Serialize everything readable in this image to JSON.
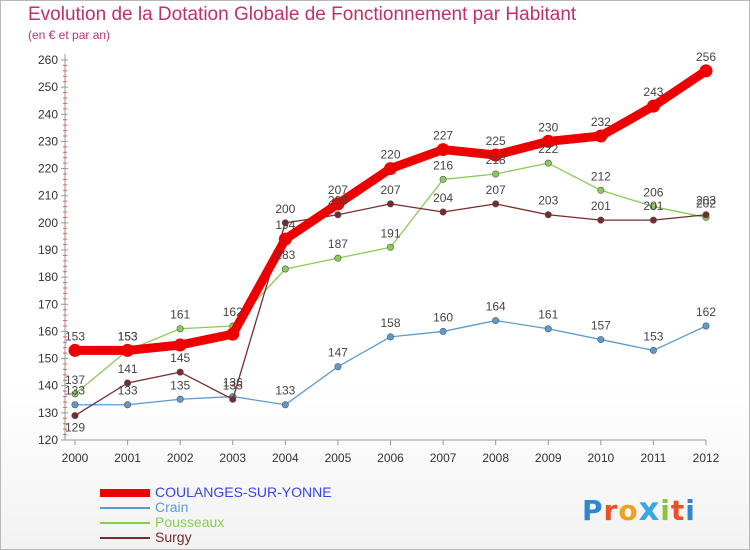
{
  "page": {
    "title": "Evolution de la Dotation Globale de Fonctionnement par Habitant",
    "subtitle": "(en € et par an)"
  },
  "logo": {
    "text": "Proxiti",
    "letters": [
      "P",
      "r",
      "o",
      "x",
      "i",
      "t",
      "i"
    ],
    "colors": [
      "#2f86d0",
      "#e8512a",
      "#f0a020",
      "#3aa8e0",
      "#8cc43a",
      "#e8512a",
      "#2f86d0"
    ]
  },
  "chart_data": {
    "type": "line",
    "title": "Evolution de la Dotation Globale de Fonctionnement par Habitant",
    "ylabel": "(en € et par an)",
    "xlabel": "",
    "x": [
      "2000",
      "2001",
      "2002",
      "2003",
      "2004",
      "2005",
      "2006",
      "2007",
      "2008",
      "2009",
      "2010",
      "2011",
      "2012"
    ],
    "ylim": [
      120,
      260
    ],
    "yticks": [
      120,
      130,
      140,
      150,
      160,
      170,
      180,
      190,
      200,
      210,
      220,
      230,
      240,
      250,
      260
    ],
    "grid": false,
    "legend_position": "bottom-left",
    "series": [
      {
        "name": "COULANGES-SUR-YONNE",
        "color": "#ee0000",
        "textcolor": "#3344ee",
        "bold": true,
        "values": [
          153,
          153,
          155,
          159,
          194,
          207,
          220,
          227,
          225,
          230,
          232,
          243,
          256
        ],
        "labels": [
          "153",
          "153",
          "",
          "",
          "194",
          "207",
          "220",
          "227",
          "225",
          "230",
          "232",
          "243",
          "256"
        ]
      },
      {
        "name": "Crain",
        "color": "#5b9bd0",
        "textcolor": "#5b9bd0",
        "bold": false,
        "values": [
          133,
          133,
          135,
          136,
          133,
          147,
          158,
          160,
          164,
          161,
          157,
          153,
          162
        ],
        "labels": [
          "133",
          "133",
          "135",
          "136",
          "133",
          "147",
          "158",
          "160",
          "164",
          "161",
          "157",
          "153",
          "162"
        ]
      },
      {
        "name": "Pousseaux",
        "color": "#88cc55",
        "textcolor": "#88cc55",
        "bold": false,
        "values": [
          137,
          153,
          161,
          162,
          183,
          187,
          191,
          216,
          218,
          222,
          212,
          206,
          202
        ],
        "labels": [
          "137",
          "153",
          "161",
          "162",
          "183",
          "187",
          "191",
          "216",
          "218",
          "222",
          "212",
          "206",
          "202"
        ]
      },
      {
        "name": "Surgy",
        "color": "#7a2a2a",
        "textcolor": "#7a2a2a",
        "bold": false,
        "values": [
          129,
          141,
          145,
          135,
          200,
          203,
          207,
          204,
          207,
          203,
          201,
          201,
          203
        ],
        "labels": [
          "129",
          "141",
          "145",
          "135",
          "200",
          "203",
          "207",
          "204",
          "207",
          "203",
          "201",
          "201",
          "203"
        ]
      }
    ]
  }
}
